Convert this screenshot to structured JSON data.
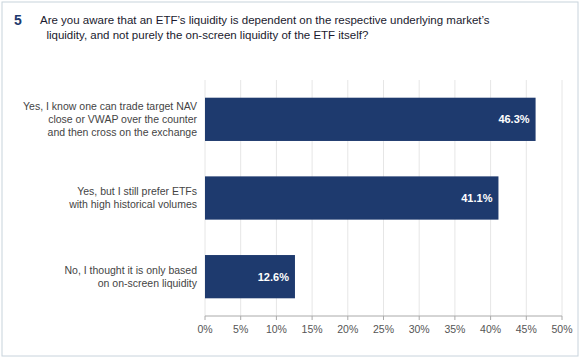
{
  "chart_data": {
    "type": "bar",
    "orientation": "horizontal",
    "title": "Are you aware that an ETF’s liquidity is dependent on the respective underlying market’s\n  liquidity, and not purely the on-screen liquidity of the ETF itself?",
    "annotations": [
      "5"
    ],
    "categories": [
      "Yes, I know one can trade target NAV\nclose or VWAP over the counter\nand then cross on the exchange",
      "Yes, but I still prefer ETFs\nwith high historical volumes",
      "No, I thought it is only based\non on-screen liquidity"
    ],
    "values": [
      46.3,
      41.1,
      12.6
    ],
    "value_labels": [
      "46.3%",
      "41.1%",
      "12.6%"
    ],
    "data_labels": true,
    "color": "#1e3a6e",
    "xlim": [
      0,
      50
    ],
    "xticks": [
      {
        "value": 0,
        "label": "0%"
      },
      {
        "value": 5,
        "label": "5%"
      },
      {
        "value": 10,
        "label": "10%"
      },
      {
        "value": 15,
        "label": "15%"
      },
      {
        "value": 20,
        "label": "20%"
      },
      {
        "value": 25,
        "label": "25%"
      },
      {
        "value": 30,
        "label": "30%"
      },
      {
        "value": 35,
        "label": "35%"
      },
      {
        "value": 40,
        "label": "40%"
      },
      {
        "value": 45,
        "label": "45%"
      },
      {
        "value": 50,
        "label": "50%"
      }
    ],
    "grid": true
  }
}
